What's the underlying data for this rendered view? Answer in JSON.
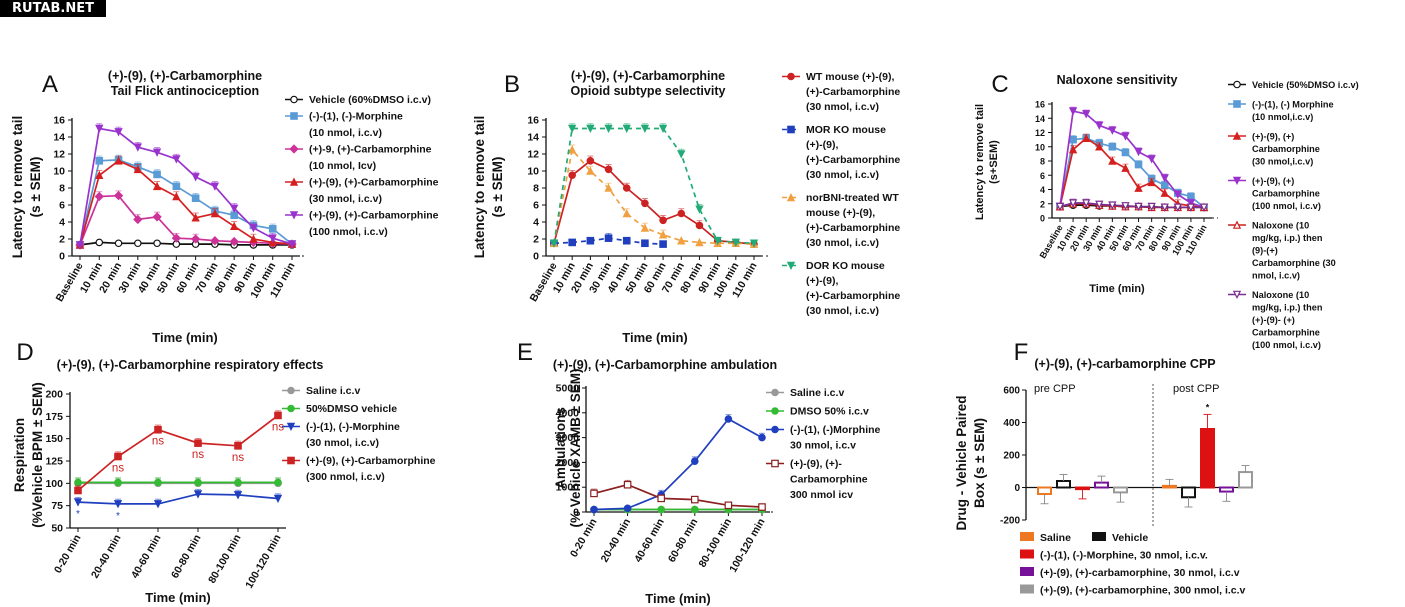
{
  "watermark": "RUTAB.NET",
  "chart_data": [
    {
      "id": "A",
      "panel": "A",
      "type": "line",
      "title": "(+)-(9), (+)-Carbamorphine",
      "subtitle": "Tail Flick antinociception",
      "xlabel": "Time (min)",
      "ylabel": "Latency to remove tail",
      "ylabel2": "(s ± SEM)",
      "categories": [
        "Baseline",
        "10 min",
        "20 min",
        "30 min",
        "40 min",
        "50 min",
        "60 min",
        "70 min",
        "80 min",
        "90 min",
        "100 min",
        "110 min"
      ],
      "ylim": [
        0,
        16
      ],
      "yticks": [
        0,
        2,
        4,
        6,
        8,
        10,
        12,
        14,
        16
      ],
      "legend_position": "right",
      "series": [
        {
          "name": "Vehicle (60%DMSO i.c.v)",
          "legend": [
            "Vehicle (60%DMSO i.c.v)"
          ],
          "color": "#111111",
          "marker": "circle-open",
          "values": [
            1.3,
            1.6,
            1.5,
            1.5,
            1.5,
            1.4,
            1.4,
            1.4,
            1.3,
            1.3,
            1.3,
            1.3
          ]
        },
        {
          "name": "(-)-(1), (-)-Morphine (10 nmol, i.c.v)",
          "legend": [
            "(-)-(1), (-)-Morphine",
            "(10 nmol, i.c.v)"
          ],
          "color": "#5b9bd5",
          "marker": "square",
          "values": [
            1.3,
            11.2,
            11.3,
            10.5,
            9.6,
            8.2,
            6.8,
            5.3,
            4.8,
            3.6,
            3.2,
            1.4
          ]
        },
        {
          "name": "(+)-9, (+)-Carbamorphine (10 nmol, Icv)",
          "legend": [
            "(+)-9, (+)-Carbamorphine",
            "(10 nmol, Icv)"
          ],
          "color": "#cc3399",
          "marker": "diamond",
          "values": [
            1.3,
            7.0,
            7.1,
            4.3,
            4.6,
            2.1,
            2.0,
            1.8,
            1.7,
            1.6,
            1.5,
            1.4
          ]
        },
        {
          "name": "(+)-(9), (+)-Carbamorphine (30 nmol, i.c.v)",
          "legend": [
            "(+)-(9), (+)-Carbamorphine",
            "(30 nmol, i.c.v)"
          ],
          "color": "#d62020",
          "marker": "triangle",
          "values": [
            1.3,
            9.5,
            11.2,
            10.2,
            8.2,
            7.0,
            4.5,
            5.0,
            3.5,
            2.0,
            1.6,
            1.4
          ]
        },
        {
          "name": "(+)-(9), (+)-Carbamorphine (100 nmol, i.c.v)",
          "legend": [
            "(+)-(9), (+)-Carbamorphine",
            "(100 nmol, i.c.v)"
          ],
          "color": "#9933cc",
          "marker": "triangle-down",
          "values": [
            1.3,
            15.0,
            14.6,
            12.8,
            12.2,
            11.4,
            9.3,
            8.2,
            5.6,
            3.3,
            2.1,
            1.4
          ]
        }
      ]
    },
    {
      "id": "B",
      "panel": "B",
      "type": "line",
      "title": "(+)-(9), (+)-Carbamorphine",
      "subtitle": "Opioid subtype selectivity",
      "xlabel": "Time (min)",
      "ylabel": "Latency to remove tail",
      "ylabel2": "(s ± SEM)",
      "categories": [
        "Baseline",
        "10 min",
        "20 min",
        "30 min",
        "40 min",
        "50 min",
        "60 min",
        "70 min",
        "80 min",
        "90 min",
        "100 min",
        "110 min"
      ],
      "ylim": [
        0,
        16
      ],
      "yticks": [
        0,
        2,
        4,
        6,
        8,
        10,
        12,
        14,
        16
      ],
      "legend_position": "right",
      "series": [
        {
          "name": "WT mouse (+)-(9), (+)-Carbamorphine (30 nmol, i.c.v)",
          "legend": [
            "WT mouse (+)-(9),",
            "(+)-Carbamorphine",
            "(30 nmol, i.c.v)"
          ],
          "color": "#cc2222",
          "marker": "circle",
          "dash": "",
          "values": [
            1.5,
            9.5,
            11.2,
            10.2,
            8.0,
            6.2,
            4.2,
            5.0,
            3.6,
            1.8,
            1.6,
            1.4
          ]
        },
        {
          "name": "MOR KO mouse (+)-(9), (+)-Carbamorphine (30 nmol, i.c.v)",
          "legend": [
            "MOR KO mouse",
            "(+)-(9),",
            "(+)-Carbamorphine",
            "(30 nmol, i.c.v)"
          ],
          "color": "#1f3fbf",
          "marker": "square",
          "dash": "5,4",
          "values": [
            1.5,
            1.6,
            1.8,
            2.1,
            1.8,
            1.5,
            1.4,
            null,
            null,
            null,
            null,
            null
          ]
        },
        {
          "name": "norBNI-treated WT mouse (+)-(9), (+)-Carbamorphine (30 nmol, i.c.v)",
          "legend": [
            "norBNI-treated WT",
            "mouse (+)-(9),",
            "(+)-Carbamorphine",
            "(30 nmol, i.c.v)"
          ],
          "color": "#f0a040",
          "marker": "triangle",
          "dash": "5,4",
          "values": [
            1.5,
            12.5,
            10.0,
            8.0,
            5.0,
            3.3,
            2.5,
            1.8,
            1.6,
            1.5,
            1.5,
            1.4
          ]
        },
        {
          "name": "DOR KO mouse (+)-(9), (+)-Carbamorphine (30 nmol, i.c.v)",
          "legend": [
            "DOR KO mouse",
            "(+)-(9),",
            "(+)-Carbamorphine",
            "(30 nmol, i.c.v)"
          ],
          "color": "#22aa77",
          "marker": "triangle-down",
          "dash": "5,4",
          "values": [
            1.5,
            15.0,
            15.0,
            15.0,
            15.0,
            15.0,
            15.0,
            12.0,
            5.5,
            1.8,
            1.6,
            1.5
          ]
        }
      ]
    },
    {
      "id": "C",
      "panel": "C",
      "type": "line",
      "title": "Naloxone sensitivity",
      "xlabel": "Time (min)",
      "ylabel": "Latency to remove tail",
      "ylabel2": "(s+SEM)",
      "categories": [
        "Baseline",
        "10 min",
        "20 min",
        "30 min",
        "40 min",
        "50 min",
        "60 min",
        "70 min",
        "80 min",
        "90 min",
        "100 min",
        "110 min"
      ],
      "ylim": [
        0,
        16
      ],
      "yticks": [
        0,
        2,
        4,
        6,
        8,
        10,
        12,
        14,
        16
      ],
      "legend_position": "right",
      "series": [
        {
          "name": "Vehicle (50%DMSO i.c.v)",
          "legend": [
            "Vehicle (50%DMSO i.c.v)"
          ],
          "color": "#111111",
          "marker": "circle-open",
          "values": [
            1.6,
            1.8,
            1.8,
            1.7,
            1.7,
            1.6,
            1.6,
            1.5,
            1.5,
            1.5,
            1.5,
            1.5
          ]
        },
        {
          "name": "(-)-(1), (-) Morphine (10 nmol,i.c.v)",
          "legend": [
            "(-)-(1), (-) Morphine",
            "(10 nmol,i.c.v)"
          ],
          "color": "#5b9bd5",
          "marker": "square",
          "values": [
            1.6,
            11.0,
            11.2,
            10.5,
            10.0,
            9.2,
            7.5,
            5.5,
            4.6,
            3.5,
            3.0,
            1.5
          ]
        },
        {
          "name": "(+)-(9), (+) Carbamorphine (30 nmol,i.c.v)",
          "legend": [
            "(+)-(9), (+)",
            "Carbamorphine",
            "(30 nmol,i.c.v)"
          ],
          "color": "#d62020",
          "marker": "triangle",
          "values": [
            1.6,
            9.6,
            11.2,
            10.0,
            8.0,
            7.0,
            4.2,
            5.0,
            3.5,
            2.0,
            1.7,
            1.5
          ]
        },
        {
          "name": "(+)-(9), (+) Carbamorphine (100 nmol, i.c.v)",
          "legend": [
            "(+)-(9), (+)",
            "Carbamorphine",
            "(100 nmol, i.c.v)"
          ],
          "color": "#9933cc",
          "marker": "triangle-down",
          "values": [
            1.6,
            15.0,
            14.6,
            13.0,
            12.3,
            11.5,
            9.3,
            8.3,
            5.6,
            3.3,
            2.1,
            1.5
          ]
        },
        {
          "name": "Naloxone (10 mg/kg, i.p.) then (9)-(+) Carbamorphine (30 nmol, i.c.v)",
          "legend": [
            "Naloxone (10",
            "mg/kg, i.p.) then",
            "(9)-(+)",
            "Carbamorphine (30",
            "nmol, i.c.v)"
          ],
          "color": "#cc2222",
          "marker": "triangle-open",
          "values": [
            1.6,
            2.0,
            2.0,
            1.8,
            1.7,
            1.6,
            1.6,
            1.5,
            1.5,
            1.5,
            1.5,
            1.5
          ]
        },
        {
          "name": "Naloxone (10 mg/kg, i.p.) then (+)-(9)- (+) Carbamorphine (100 nmol, i.c.v)",
          "legend": [
            "Naloxone (10",
            "mg/kg, i.p.) then",
            "(+)-(9)- (+)",
            "Carbamorphine",
            "(100 nmol, i.c.v)"
          ],
          "color": "#7a2f8f",
          "marker": "triangle-down-open",
          "values": [
            1.6,
            2.1,
            2.1,
            1.9,
            1.8,
            1.7,
            1.6,
            1.6,
            1.5,
            1.5,
            1.5,
            1.5
          ]
        }
      ]
    },
    {
      "id": "D",
      "panel": "D",
      "type": "line",
      "title": "(+)-(9), (+)-Carbamorphine respiratory effects",
      "xlabel": "Time (min)",
      "ylabel": "Respiration",
      "ylabel2": "(%Vehicle BPM ± SEM)",
      "categories": [
        "0-20 min",
        "20-40 min",
        "40-60 min",
        "60-80 min",
        "80-100 min",
        "100-120 min"
      ],
      "ylim": [
        50,
        200
      ],
      "yticks": [
        50,
        75,
        100,
        125,
        150,
        175,
        200
      ],
      "legend_position": "right",
      "annotations": [
        {
          "series": 3,
          "index": 1,
          "text": "ns"
        },
        {
          "series": 3,
          "index": 2,
          "text": "ns"
        },
        {
          "series": 3,
          "index": 3,
          "text": "ns"
        },
        {
          "series": 3,
          "index": 4,
          "text": "ns"
        },
        {
          "series": 3,
          "index": 5,
          "text": "ns"
        },
        {
          "series": 2,
          "index": 0,
          "text": "*"
        },
        {
          "series": 2,
          "index": 1,
          "text": "*"
        }
      ],
      "series": [
        {
          "name": "Saline i.c.v",
          "legend": [
            "Saline i.c.v"
          ],
          "color": "#999999",
          "marker": "circle",
          "values": [
            100,
            100,
            100,
            100,
            100,
            100
          ]
        },
        {
          "name": "50%DMSO vehicle",
          "legend": [
            "50%DMSO vehicle"
          ],
          "color": "#33bb33",
          "marker": "circle",
          "values": [
            101,
            101,
            101,
            101,
            101,
            101
          ]
        },
        {
          "name": "(-)-(1), (-)-Morphine (30 nmol, i.c.v)",
          "legend": [
            "(-)-(1), (-)-Morphine",
            "(30 nmol, i.c.v)"
          ],
          "color": "#1f3fbf",
          "marker": "triangle-down",
          "values": [
            79,
            77,
            77,
            88,
            87,
            83
          ]
        },
        {
          "name": "(+)-(9), (+)-Carbamorphine (300 nmol, i.c.v)",
          "legend": [
            "(+)-(9), (+)-Carbamorphine",
            "(300 nmol, i.c.v)"
          ],
          "color": "#cc2222",
          "marker": "square",
          "values": [
            92,
            130,
            160,
            145,
            142,
            176
          ]
        }
      ]
    },
    {
      "id": "E",
      "panel": "E",
      "type": "line",
      "title": "(+)-(9), (+)-Carbamorphine ambulation",
      "xlabel": "Time (min)",
      "ylabel": "Ambulations",
      "ylabel2": "(% Vehicle XAMB ± SEM)",
      "categories": [
        "0-20 min",
        "20-40 min",
        "40-60 min",
        "60-80 min",
        "80-100 min",
        "100-120 min"
      ],
      "ylim": [
        0,
        5000
      ],
      "yticks": [
        0,
        1000,
        2000,
        3000,
        4000,
        5000
      ],
      "legend_position": "right",
      "series": [
        {
          "name": "Saline i.c.v",
          "legend": [
            "Saline i.c.v"
          ],
          "color": "#999999",
          "marker": "circle",
          "values": [
            100,
            100,
            100,
            100,
            100,
            100
          ]
        },
        {
          "name": "DMSO 50% i.c.v",
          "legend": [
            "DMSO 50% i.c.v"
          ],
          "color": "#33bb33",
          "marker": "circle",
          "values": [
            100,
            100,
            100,
            100,
            100,
            100
          ]
        },
        {
          "name": "(-)-(1), (-)Morphine 30 nmol, i.c.v",
          "legend": [
            "(-)-(1), (-)Morphine",
            "30 nmol, i.c.v"
          ],
          "color": "#1f3fbf",
          "marker": "circle",
          "values": [
            100,
            150,
            700,
            2050,
            3750,
            3000
          ]
        },
        {
          "name": "(+)-(9), (+)- Carbamorphine 300 nmol icv",
          "legend": [
            "(+)-(9), (+)-",
            "Carbamorphine",
            "300 nmol icv"
          ],
          "color": "#8b2020",
          "marker": "square-open",
          "values": [
            750,
            1100,
            550,
            500,
            270,
            200
          ]
        }
      ]
    },
    {
      "id": "F",
      "panel": "F",
      "type": "bar",
      "title": "(+)-(9), (+)-carbamorphine CPP",
      "ylabel": "Drug - Vehicle Paired",
      "ylabel2": "Box (s ± SEM)",
      "groups": [
        "pre CPP",
        "post CPP"
      ],
      "ylim": [
        -200,
        600
      ],
      "yticks": [
        -200,
        0,
        200,
        400,
        600
      ],
      "annotation": "*",
      "legend_position": "bottom",
      "series": [
        {
          "name": "Saline",
          "legend": [
            "Saline"
          ],
          "color": "#ee7722",
          "hollow": true,
          "values": [
            -40,
            10
          ]
        },
        {
          "name": "Vehicle",
          "legend": [
            "Vehicle"
          ],
          "color": "#111111",
          "hollow": true,
          "values": [
            40,
            -60
          ]
        },
        {
          "name": "(-)-(1), (-)-Morphine, 30 nmol, i.c.v.",
          "legend": [
            "(-)-(1), (-)-Morphine, 30 nmol, i.c.v."
          ],
          "color": "#dd1111",
          "hollow": false,
          "values": [
            -10,
            360
          ]
        },
        {
          "name": "(+)-(9), (+)-carbamorphine, 30 nmol, i.c.v",
          "legend": [
            "(+)-(9), (+)-carbamorphine, 30 nmol, i.c.v"
          ],
          "color": "#771199",
          "hollow": true,
          "values": [
            30,
            -25
          ]
        },
        {
          "name": "(+)-(9), (+)-carbamorphine, 300 nmol, i.c.v",
          "legend": [
            "(+)-(9), (+)-carbamorphine, 300 nmol, i.c.v"
          ],
          "color": "#999999",
          "hollow": true,
          "values": [
            -30,
            95
          ]
        }
      ]
    }
  ]
}
